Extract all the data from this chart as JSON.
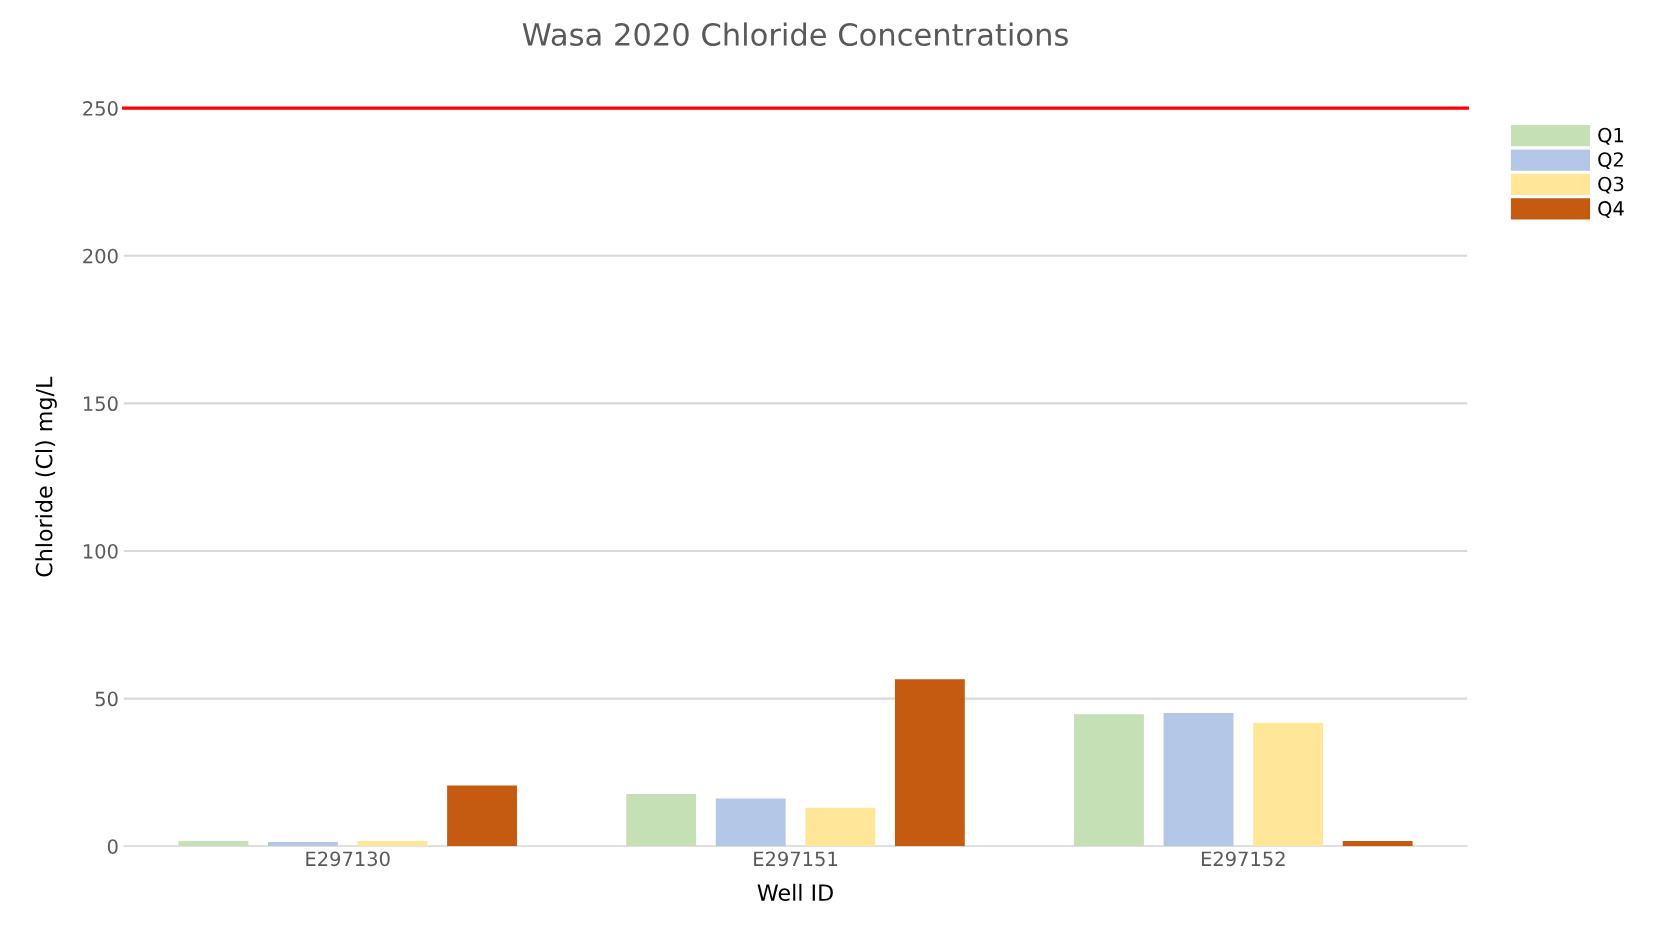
{
  "chart_data": {
    "type": "bar",
    "title": "Wasa 2020 Chloride Concentrations",
    "xlabel": "Well ID",
    "ylabel": "Chloride (Cl) mg/L",
    "categories": [
      "E297130",
      "E297151",
      "E297152"
    ],
    "series": [
      {
        "name": "Q1",
        "color": "#c5e0b4",
        "values": [
          1.8,
          17.7,
          44.7
        ]
      },
      {
        "name": "Q2",
        "color": "#b4c7e7",
        "values": [
          1.4,
          16.2,
          45.1
        ]
      },
      {
        "name": "Q3",
        "color": "#ffe699",
        "values": [
          1.8,
          13.0,
          41.8
        ]
      },
      {
        "name": "Q4",
        "color": "#c55a11",
        "values": [
          20.6,
          56.6,
          1.8
        ]
      }
    ],
    "ylim": [
      0,
      250
    ],
    "yticks": [
      0,
      50,
      100,
      150,
      200,
      250
    ],
    "grid": "y",
    "legend": "top right",
    "ref_lines": [
      {
        "axis": "y",
        "value": 250,
        "color": "#ff0000"
      }
    ]
  }
}
